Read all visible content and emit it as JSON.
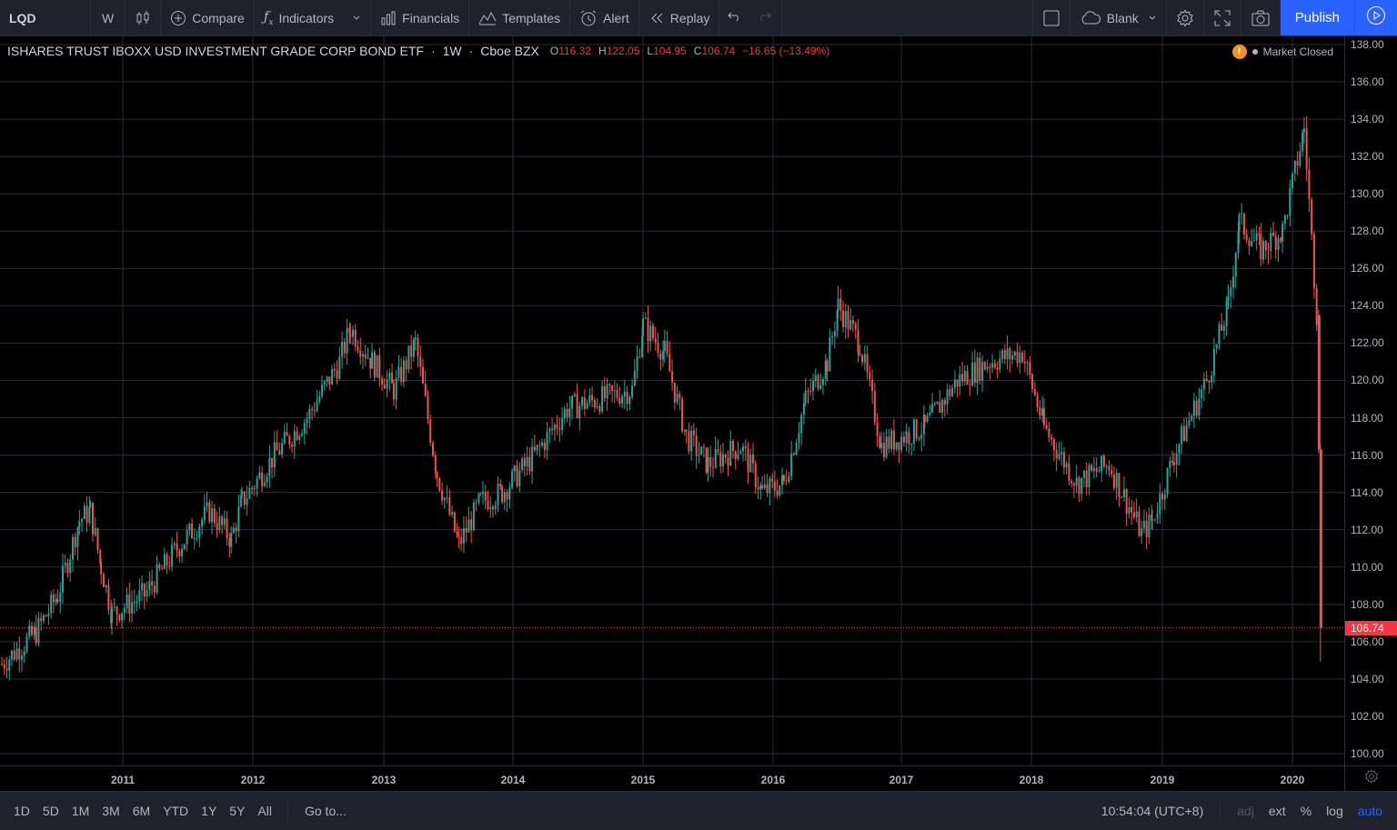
{
  "toolbar": {
    "symbol": "LQD",
    "interval": "W",
    "compare": "Compare",
    "indicators": "Indicators",
    "financials": "Financials",
    "templates": "Templates",
    "alert": "Alert",
    "replay": "Replay",
    "layout_name": "Blank",
    "publish": "Publish"
  },
  "legend": {
    "title": "ISHARES TRUST IBOXX USD INVESTMENT GRADE CORP BOND ETF",
    "sep1": "·",
    "interval": "1W",
    "sep2": "·",
    "exchange": "Cboe BZX",
    "o_key": "O",
    "o": "116.32",
    "h_key": "H",
    "h": "122.05",
    "l_key": "L",
    "l": "104.95",
    "c_key": "C",
    "c": "106.74",
    "change": "−16.65 (−13.49%)",
    "market_status": "Market Closed"
  },
  "price_tag": "106.74",
  "bottom": {
    "ranges": [
      "1D",
      "5D",
      "1M",
      "3M",
      "6M",
      "YTD",
      "1Y",
      "5Y",
      "All"
    ],
    "goto": "Go to...",
    "clock": "10:54:04 (UTC+8)",
    "adj": "adj",
    "ext": "ext",
    "pct": "%",
    "log": "log",
    "auto": "auto"
  },
  "colors": {
    "up": "#26a69a",
    "down": "#ef5350",
    "grid": "#2a2e39",
    "price_line": "#f23645",
    "accent": "#2962ff"
  },
  "chart_data": {
    "type": "candlestick",
    "ylim": [
      99,
      138.5
    ],
    "y_ticks": [
      "100.00",
      "102.00",
      "104.00",
      "106.00",
      "108.00",
      "110.00",
      "112.00",
      "114.00",
      "116.00",
      "118.00",
      "120.00",
      "122.00",
      "124.00",
      "126.00",
      "128.00",
      "130.00",
      "132.00",
      "134.00",
      "136.00",
      "138.00"
    ],
    "x_ticks": [
      "2011",
      "2012",
      "2013",
      "2014",
      "2015",
      "2016",
      "2017",
      "2018",
      "2019",
      "2020"
    ],
    "last_price": 106.74,
    "closes_approx": [
      [
        "2010-03",
        104.8
      ],
      [
        "2010-05",
        106.5
      ],
      [
        "2010-07",
        108.5
      ],
      [
        "2010-09",
        112.5
      ],
      [
        "2010-10",
        113.0
      ],
      [
        "2010-11",
        110.0
      ],
      [
        "2010-12",
        107.5
      ],
      [
        "2011-03",
        108.5
      ],
      [
        "2011-06",
        111.0
      ],
      [
        "2011-09",
        113.0
      ],
      [
        "2011-11",
        111.5
      ],
      [
        "2011-12",
        113.5
      ],
      [
        "2012-03",
        116.0
      ],
      [
        "2012-06",
        118.0
      ],
      [
        "2012-09",
        121.0
      ],
      [
        "2012-10",
        122.8
      ],
      [
        "2012-12",
        121.0
      ],
      [
        "2013-02",
        119.5
      ],
      [
        "2013-04",
        122.0
      ],
      [
        "2013-06",
        115.0
      ],
      [
        "2013-08",
        111.2
      ],
      [
        "2013-10",
        113.5
      ],
      [
        "2013-12",
        114.0
      ],
      [
        "2014-03",
        116.0
      ],
      [
        "2014-06",
        118.5
      ],
      [
        "2014-09",
        119.0
      ],
      [
        "2014-12",
        119.5
      ],
      [
        "2015-01",
        123.0
      ],
      [
        "2015-03",
        121.5
      ],
      [
        "2015-05",
        117.0
      ],
      [
        "2015-07",
        115.5
      ],
      [
        "2015-10",
        116.5
      ],
      [
        "2015-12",
        114.0
      ],
      [
        "2016-02",
        114.5
      ],
      [
        "2016-04",
        119.0
      ],
      [
        "2016-06",
        121.0
      ],
      [
        "2016-07",
        124.0
      ],
      [
        "2016-09",
        122.0
      ],
      [
        "2016-11",
        116.5
      ],
      [
        "2017-03",
        117.5
      ],
      [
        "2017-06",
        120.0
      ],
      [
        "2017-09",
        121.0
      ],
      [
        "2017-12",
        121.5
      ],
      [
        "2018-02",
        117.5
      ],
      [
        "2018-05",
        114.5
      ],
      [
        "2018-08",
        115.5
      ],
      [
        "2018-11",
        111.8
      ],
      [
        "2018-12",
        112.5
      ],
      [
        "2019-02",
        116.0
      ],
      [
        "2019-05",
        120.0
      ],
      [
        "2019-07",
        124.0
      ],
      [
        "2019-08",
        128.5
      ],
      [
        "2019-10",
        127.0
      ],
      [
        "2019-12",
        128.0
      ],
      [
        "2020-02",
        133.5
      ],
      [
        "2020-03-a",
        123.5
      ],
      [
        "2020-03-b",
        116.3
      ],
      [
        "2020-03-c",
        106.74
      ]
    ]
  }
}
